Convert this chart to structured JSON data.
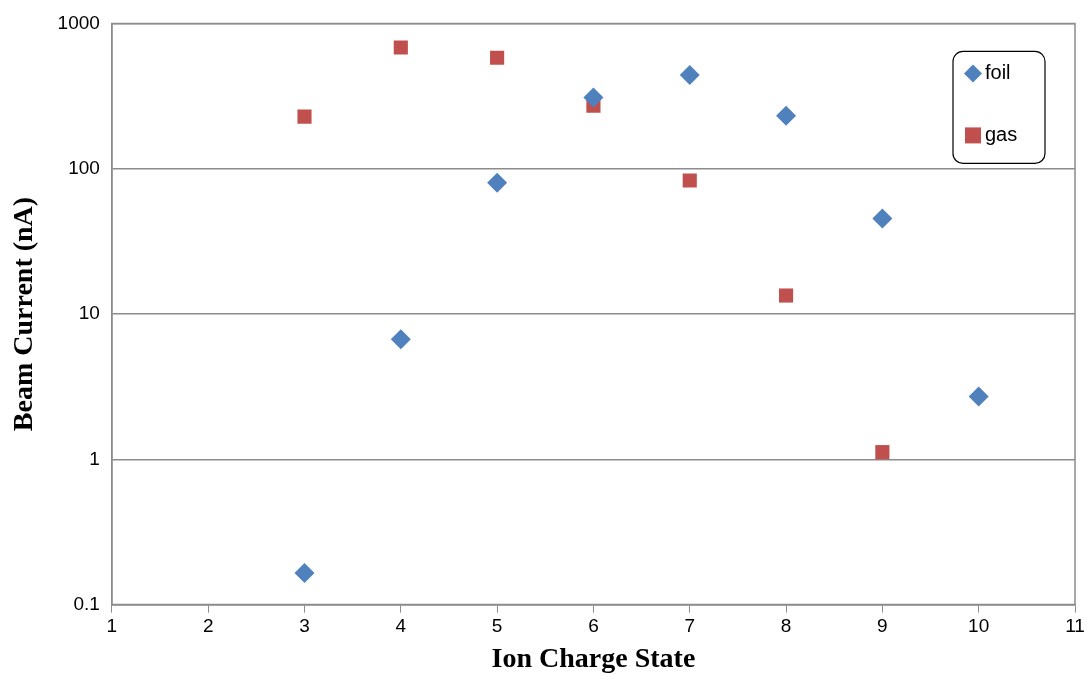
{
  "chart_data": {
    "type": "scatter",
    "xlabel": "Ion Charge State",
    "ylabel": "Beam Current (nA)",
    "log": "y",
    "grid": "y",
    "legend": "top right",
    "xlim": [
      1,
      11
    ],
    "xticks": [
      1,
      2,
      3,
      4,
      5,
      6,
      7,
      8,
      9,
      10,
      11
    ],
    "ylim": [
      0.1,
      1000
    ],
    "yticks": [
      0.1,
      1,
      10,
      100,
      1000
    ],
    "series": [
      {
        "name": "foil",
        "color": "#4f81bd",
        "marker": "diamond",
        "x": [
          3,
          4,
          5,
          6,
          7,
          8,
          9,
          10
        ],
        "values": [
          0.165,
          6.7,
          80,
          309,
          441,
          231,
          45.5,
          2.7
        ]
      },
      {
        "name": "gas",
        "color": "#c0504d",
        "marker": "square",
        "x": [
          3,
          4,
          5,
          6,
          7,
          8,
          9
        ],
        "values": [
          228,
          682,
          580,
          272,
          83,
          13.4,
          1.12
        ]
      }
    ]
  }
}
